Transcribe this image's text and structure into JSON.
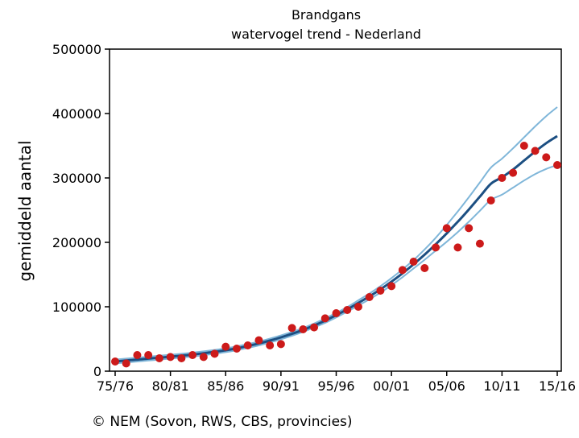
{
  "chart_data": {
    "type": "scatter",
    "title": "Brandgans",
    "subtitle": "watervogel trend - Nederland",
    "xlabel": "",
    "ylabel": "gemiddeld aantal",
    "x_tick_labels": [
      "75/76",
      "80/81",
      "85/86",
      "90/91",
      "95/96",
      "00/01",
      "05/06",
      "10/11",
      "15/16"
    ],
    "x_range": [
      1975,
      2015
    ],
    "ylim": [
      0,
      500000
    ],
    "y_ticks": [
      0,
      100000,
      200000,
      300000,
      400000,
      500000
    ],
    "grid": false,
    "colors": {
      "points": "#cc1a1a",
      "trend": "#1c4f82",
      "confidence": "#7fb6d9",
      "axis": "#000000"
    },
    "x": [
      1975,
      1976,
      1977,
      1978,
      1979,
      1980,
      1981,
      1982,
      1983,
      1984,
      1985,
      1986,
      1987,
      1988,
      1989,
      1990,
      1991,
      1992,
      1993,
      1994,
      1995,
      1996,
      1997,
      1998,
      1999,
      2000,
      2001,
      2002,
      2003,
      2004,
      2005,
      2006,
      2007,
      2008,
      2009,
      2010,
      2011,
      2012,
      2013,
      2014,
      2015
    ],
    "observed": [
      15000,
      12000,
      25000,
      25000,
      20000,
      22000,
      20000,
      25000,
      22000,
      27000,
      38000,
      35000,
      40000,
      48000,
      40000,
      42000,
      67000,
      65000,
      68000,
      82000,
      90000,
      95000,
      100000,
      115000,
      125000,
      132000,
      157000,
      170000,
      160000,
      192000,
      222000,
      192000,
      222000,
      198000,
      265000,
      300000,
      308000,
      350000,
      342000,
      332000,
      320000
    ],
    "trend": [
      15000,
      16500,
      18000,
      19500,
      21000,
      22500,
      24000,
      25800,
      27800,
      30000,
      32500,
      35500,
      39000,
      43000,
      47500,
      52500,
      58000,
      64000,
      71000,
      78500,
      87000,
      96000,
      106000,
      116000,
      127000,
      139000,
      152000,
      166000,
      181000,
      197000,
      214000,
      232000,
      251000,
      271000,
      291000,
      301000,
      313000,
      327000,
      341000,
      354000,
      365000
    ],
    "upper": [
      18000,
      19500,
      21000,
      22500,
      24000,
      25500,
      27000,
      28800,
      30800,
      33000,
      35500,
      38500,
      42000,
      46000,
      50500,
      55500,
      61000,
      67000,
      74000,
      82000,
      90500,
      99500,
      110000,
      120500,
      132000,
      144500,
      158000,
      172500,
      189000,
      207000,
      227000,
      248000,
      270000,
      293000,
      316000,
      330000,
      346000,
      363000,
      380000,
      396000,
      410000
    ],
    "lower": [
      12000,
      13500,
      15000,
      16500,
      18000,
      19500,
      21000,
      22800,
      24800,
      27000,
      29500,
      32500,
      36000,
      40000,
      44500,
      49500,
      55000,
      61000,
      68000,
      75000,
      83500,
      92500,
      102000,
      111500,
      122000,
      133500,
      146000,
      159500,
      173000,
      187000,
      201000,
      216000,
      232000,
      249000,
      266000,
      274000,
      285000,
      296000,
      306000,
      314000,
      320000
    ]
  },
  "footer": {
    "credit": "© NEM (Sovon, RWS, CBS, provincies)"
  }
}
